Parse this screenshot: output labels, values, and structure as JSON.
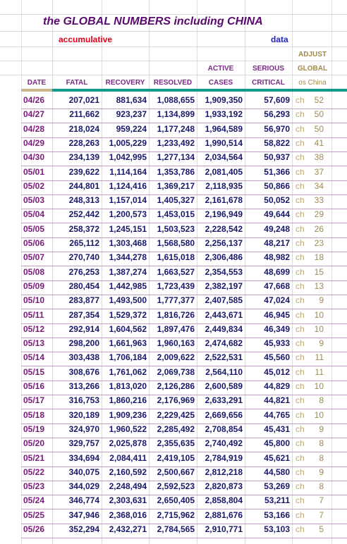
{
  "title": "the GLOBAL NUMBERS including CHINA",
  "subtitle_left": "accumulative",
  "subtitle_right": "data",
  "headers": {
    "date": "DATE",
    "fatal": "FATAL",
    "recovery": "RECOVERY",
    "resolved": "RESOLVED",
    "active_top": "ACTIVE",
    "active_bottom": "CASES",
    "serious_top": "SERIOUS",
    "serious_bottom": "CRITICAL",
    "adjust_top": "ADJUST",
    "adjust_mid": "GLOBAL",
    "adjust_bottom": "os China"
  },
  "rows": [
    {
      "date": "04/26",
      "fatal": "207,021",
      "recovery": "881,634",
      "resolved": "1,088,655",
      "active": "1,909,350",
      "serious": "57,609",
      "ch": "ch",
      "adj": "52"
    },
    {
      "date": "04/27",
      "fatal": "211,662",
      "recovery": "923,237",
      "resolved": "1,134,899",
      "active": "1,933,192",
      "serious": "56,293",
      "ch": "ch",
      "adj": "50"
    },
    {
      "date": "04/28",
      "fatal": "218,024",
      "recovery": "959,224",
      "resolved": "1,177,248",
      "active": "1,964,589",
      "serious": "56,970",
      "ch": "ch",
      "adj": "50"
    },
    {
      "date": "04/29",
      "fatal": "228,263",
      "recovery": "1,005,229",
      "resolved": "1,233,492",
      "active": "1,990,514",
      "serious": "58,822",
      "ch": "ch",
      "adj": "41"
    },
    {
      "date": "04/30",
      "fatal": "234,139",
      "recovery": "1,042,995",
      "resolved": "1,277,134",
      "active": "2,034,564",
      "serious": "50,937",
      "ch": "ch",
      "adj": "38"
    },
    {
      "date": "05/01",
      "fatal": "239,622",
      "recovery": "1,114,164",
      "resolved": "1,353,786",
      "active": "2,081,405",
      "serious": "51,366",
      "ch": "ch",
      "adj": "37"
    },
    {
      "date": "05/02",
      "fatal": "244,801",
      "recovery": "1,124,416",
      "resolved": "1,369,217",
      "active": "2,118,935",
      "serious": "50,866",
      "ch": "ch",
      "adj": "34"
    },
    {
      "date": "05/03",
      "fatal": "248,313",
      "recovery": "1,157,014",
      "resolved": "1,405,327",
      "active": "2,161,678",
      "serious": "50,052",
      "ch": "ch",
      "adj": "33"
    },
    {
      "date": "05/04",
      "fatal": "252,442",
      "recovery": "1,200,573",
      "resolved": "1,453,015",
      "active": "2,196,949",
      "serious": "49,644",
      "ch": "ch",
      "adj": "29"
    },
    {
      "date": "05/05",
      "fatal": "258,372",
      "recovery": "1,245,151",
      "resolved": "1,503,523",
      "active": "2,228,542",
      "serious": "49,248",
      "ch": "ch",
      "adj": "26"
    },
    {
      "date": "05/06",
      "fatal": "265,112",
      "recovery": "1,303,468",
      "resolved": "1,568,580",
      "active": "2,256,137",
      "serious": "48,217",
      "ch": "ch",
      "adj": "23"
    },
    {
      "date": "05/07",
      "fatal": "270,740",
      "recovery": "1,344,278",
      "resolved": "1,615,018",
      "active": "2,306,486",
      "serious": "48,982",
      "ch": "ch",
      "adj": "18"
    },
    {
      "date": "05/08",
      "fatal": "276,253",
      "recovery": "1,387,274",
      "resolved": "1,663,527",
      "active": "2,354,553",
      "serious": "48,699",
      "ch": "ch",
      "adj": "15"
    },
    {
      "date": "05/09",
      "fatal": "280,454",
      "recovery": "1,442,985",
      "resolved": "1,723,439",
      "active": "2,382,197",
      "serious": "47,668",
      "ch": "ch",
      "adj": "13"
    },
    {
      "date": "05/10",
      "fatal": "283,877",
      "recovery": "1,493,500",
      "resolved": "1,777,377",
      "active": "2,407,585",
      "serious": "47,024",
      "ch": "ch",
      "adj": "9"
    },
    {
      "date": "05/11",
      "fatal": "287,354",
      "recovery": "1,529,372",
      "resolved": "1,816,726",
      "active": "2,443,671",
      "serious": "46,945",
      "ch": "ch",
      "adj": "10"
    },
    {
      "date": "05/12",
      "fatal": "292,914",
      "recovery": "1,604,562",
      "resolved": "1,897,476",
      "active": "2,449,834",
      "serious": "46,349",
      "ch": "ch",
      "adj": "10"
    },
    {
      "date": "05/13",
      "fatal": "298,200",
      "recovery": "1,661,963",
      "resolved": "1,960,163",
      "active": "2,474,682",
      "serious": "45,933",
      "ch": "ch",
      "adj": "9"
    },
    {
      "date": "05/14",
      "fatal": "303,438",
      "recovery": "1,706,184",
      "resolved": "2,009,622",
      "active": "2,522,531",
      "serious": "45,560",
      "ch": "ch",
      "adj": "11"
    },
    {
      "date": "05/15",
      "fatal": "308,676",
      "recovery": "1,761,062",
      "resolved": "2,069,738",
      "active": "2,564,110",
      "serious": "45,012",
      "ch": "ch",
      "adj": "11"
    },
    {
      "date": "05/16",
      "fatal": "313,266",
      "recovery": "1,813,020",
      "resolved": "2,126,286",
      "active": "2,600,589",
      "serious": "44,829",
      "ch": "ch",
      "adj": "10"
    },
    {
      "date": "05/17",
      "fatal": "316,753",
      "recovery": "1,860,216",
      "resolved": "2,176,969",
      "active": "2,633,291",
      "serious": "44,821",
      "ch": "ch",
      "adj": "8"
    },
    {
      "date": "05/18",
      "fatal": "320,189",
      "recovery": "1,909,236",
      "resolved": "2,229,425",
      "active": "2,669,656",
      "serious": "44,765",
      "ch": "ch",
      "adj": "10"
    },
    {
      "date": "05/19",
      "fatal": "324,970",
      "recovery": "1,960,522",
      "resolved": "2,285,492",
      "active": "2,708,854",
      "serious": "45,431",
      "ch": "ch",
      "adj": "9"
    },
    {
      "date": "05/20",
      "fatal": "329,757",
      "recovery": "2,025,878",
      "resolved": "2,355,635",
      "active": "2,740,492",
      "serious": "45,800",
      "ch": "ch",
      "adj": "8"
    },
    {
      "date": "05/21",
      "fatal": "334,694",
      "recovery": "2,084,411",
      "resolved": "2,419,105",
      "active": "2,784,919",
      "serious": "45,621",
      "ch": "ch",
      "adj": "8"
    },
    {
      "date": "05/22",
      "fatal": "340,075",
      "recovery": "2,160,592",
      "resolved": "2,500,667",
      "active": "2,812,218",
      "serious": "44,580",
      "ch": "ch",
      "adj": "9"
    },
    {
      "date": "05/23",
      "fatal": "344,029",
      "recovery": "2,248,494",
      "resolved": "2,592,523",
      "active": "2,820,873",
      "serious": "53,269",
      "ch": "ch",
      "adj": "8"
    },
    {
      "date": "05/24",
      "fatal": "346,774",
      "recovery": "2,303,631",
      "resolved": "2,650,405",
      "active": "2,858,804",
      "serious": "53,211",
      "ch": "ch",
      "adj": "7"
    },
    {
      "date": "05/25",
      "fatal": "347,946",
      "recovery": "2,368,016",
      "resolved": "2,715,962",
      "active": "2,881,676",
      "serious": "53,166",
      "ch": "ch",
      "adj": "7"
    },
    {
      "date": "05/26",
      "fatal": "352,294",
      "recovery": "2,432,271",
      "resolved": "2,784,565",
      "active": "2,910,771",
      "serious": "53,103",
      "ch": "ch",
      "adj": "5"
    }
  ]
}
